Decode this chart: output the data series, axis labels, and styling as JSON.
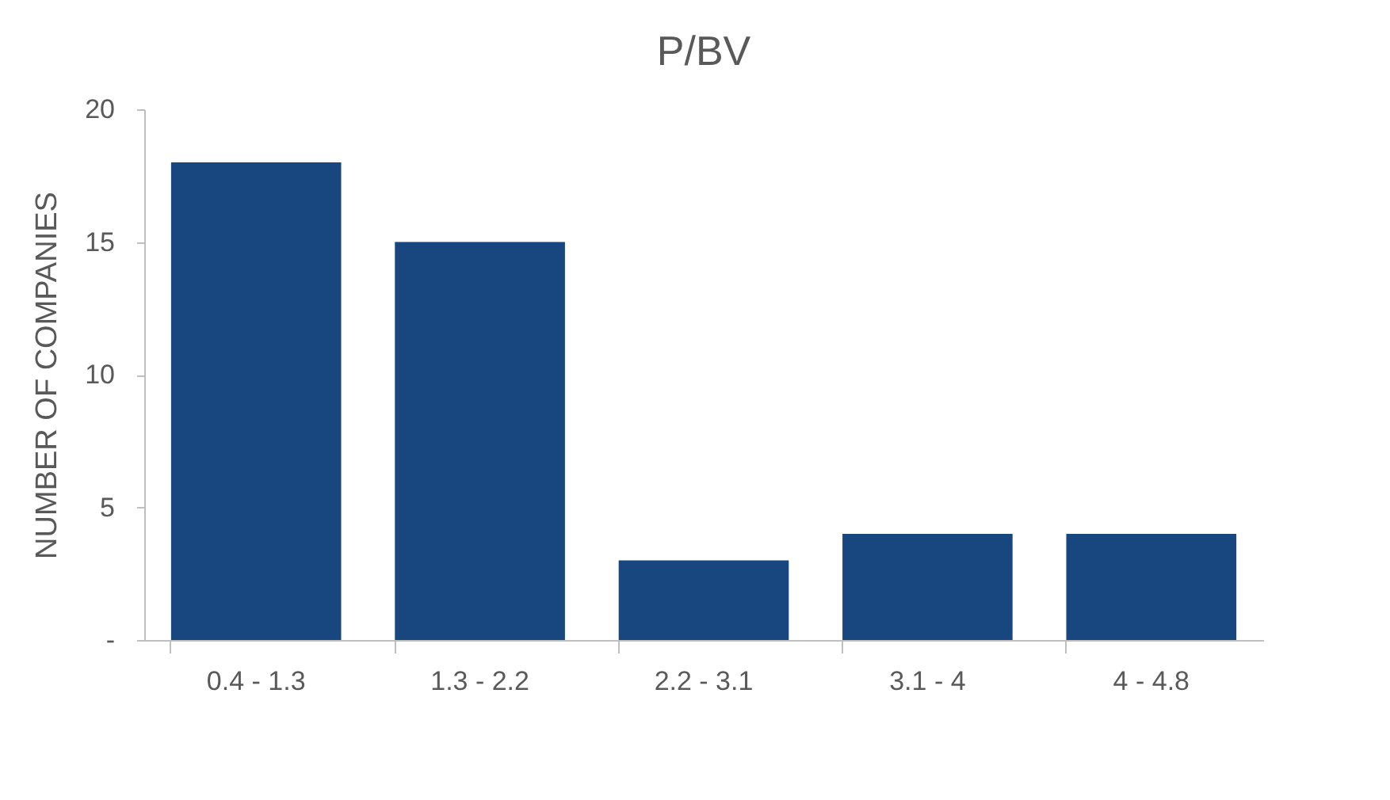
{
  "chart_data": {
    "type": "bar",
    "title": "P/BV",
    "ylabel": "NUMBER OF COMPANIES",
    "categories": [
      "0.4 - 1.3",
      "1.3 - 2.2",
      "2.2 - 3.1",
      "3.1 - 4",
      "4 - 4.8"
    ],
    "values": [
      18,
      15,
      3,
      4,
      4
    ],
    "color": "#17477e",
    "ylim": [
      0,
      20
    ],
    "yticks": [
      {
        "value": 0,
        "label": "-"
      },
      5,
      10,
      15,
      20
    ],
    "grid": false
  }
}
